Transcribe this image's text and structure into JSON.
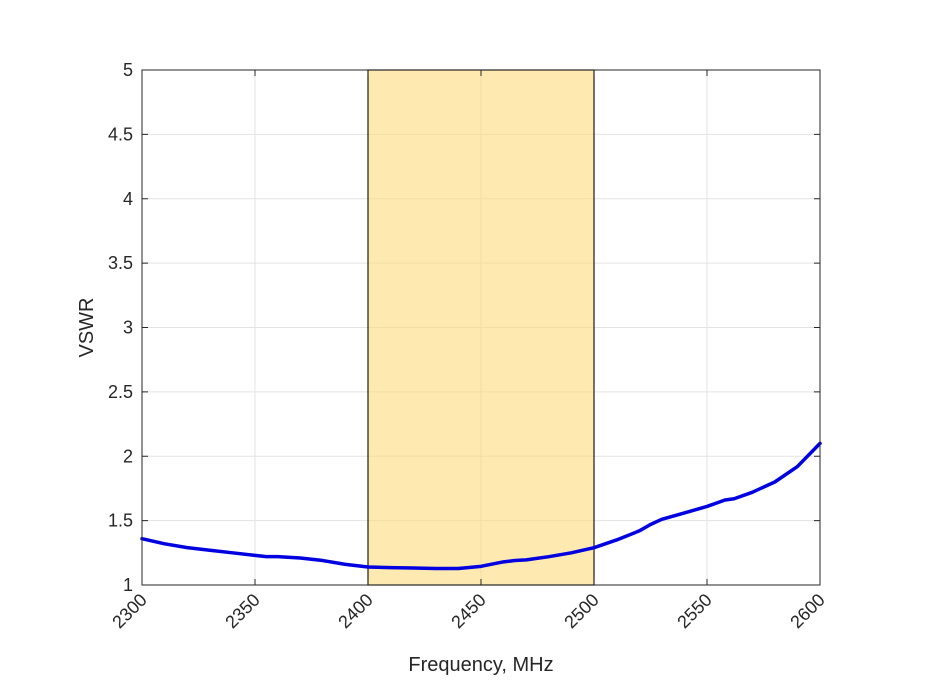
{
  "chart_data": {
    "type": "line",
    "title": "",
    "xlabel": "Frequency, MHz",
    "ylabel": "VSWR",
    "xlim": [
      2300,
      2600
    ],
    "ylim": [
      1,
      5
    ],
    "xticks": [
      2300,
      2350,
      2400,
      2450,
      2500,
      2550,
      2600
    ],
    "yticks": [
      1,
      1.5,
      2,
      2.5,
      3,
      3.5,
      4,
      4.5,
      5
    ],
    "xtick_labels": [
      "2300",
      "2350",
      "2400",
      "2450",
      "2500",
      "2550",
      "2600"
    ],
    "ytick_labels": [
      "1",
      "1.5",
      "2",
      "2.5",
      "3",
      "3.5",
      "4",
      "4.5",
      "5"
    ],
    "grid": true,
    "highlight_band": {
      "x_start": 2400,
      "x_end": 2500,
      "color": "#FDDC7C"
    },
    "series": [
      {
        "color": "#0000E0",
        "x": [
          2300,
          2310,
          2320,
          2330,
          2340,
          2350,
          2355,
          2360,
          2370,
          2380,
          2390,
          2400,
          2410,
          2420,
          2430,
          2440,
          2450,
          2460,
          2465,
          2470,
          2480,
          2490,
          2500,
          2510,
          2520,
          2525,
          2530,
          2540,
          2550,
          2558,
          2562,
          2570,
          2580,
          2590,
          2600
        ],
        "y": [
          1.36,
          1.32,
          1.29,
          1.27,
          1.25,
          1.23,
          1.22,
          1.22,
          1.21,
          1.19,
          1.16,
          1.14,
          1.135,
          1.132,
          1.128,
          1.128,
          1.145,
          1.18,
          1.19,
          1.195,
          1.22,
          1.25,
          1.29,
          1.35,
          1.42,
          1.47,
          1.51,
          1.56,
          1.61,
          1.66,
          1.67,
          1.72,
          1.8,
          1.92,
          2.1
        ]
      }
    ]
  }
}
